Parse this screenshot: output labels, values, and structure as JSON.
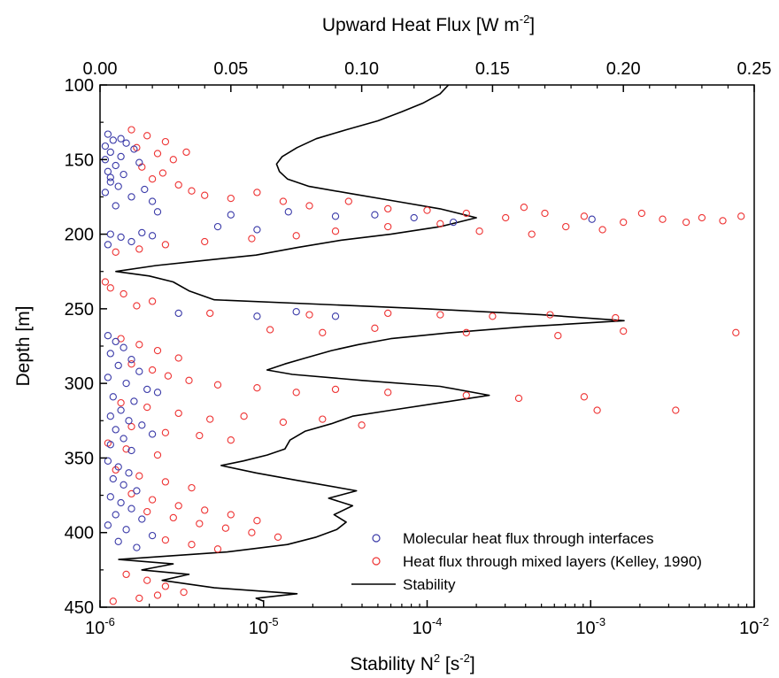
{
  "chart_data": {
    "type": "scatter",
    "top_axis": {
      "title_base": "Upward Heat Flux [W m",
      "title_sup": "-2",
      "title_end": "]",
      "range": [
        0.0,
        0.25
      ],
      "ticks": [
        0.0,
        0.05,
        0.1,
        0.15,
        0.2,
        0.25
      ],
      "tick_labels": [
        "0.00",
        "0.05",
        "0.10",
        "0.15",
        "0.20",
        "0.25"
      ]
    },
    "bottom_axis": {
      "title_base": "Stability N",
      "title_sup": "2",
      "title_end": " [s",
      "title_sup2": "-2",
      "title_end2": "]",
      "scale": "log",
      "range": [
        1e-06,
        0.01
      ],
      "ticks": [
        {
          "base": "10",
          "exp": "-6"
        },
        {
          "base": "10",
          "exp": "-5"
        },
        {
          "base": "10",
          "exp": "-4"
        },
        {
          "base": "10",
          "exp": "-3"
        },
        {
          "base": "10",
          "exp": "-2"
        }
      ]
    },
    "y_axis": {
      "title": "Depth [m]",
      "range": [
        100,
        450
      ],
      "inverted": true,
      "ticks": [
        100,
        150,
        200,
        250,
        300,
        350,
        400,
        450
      ],
      "tick_labels": [
        "100",
        "150",
        "200",
        "250",
        "300",
        "350",
        "400",
        "450"
      ]
    },
    "legend": {
      "position": "bottom-right",
      "items": [
        {
          "label": "Molecular heat flux through interfaces",
          "marker": "circle",
          "color": "#3a3aa8"
        },
        {
          "label": "Heat flux through mixed layers (Kelley, 1990)",
          "marker": "circle",
          "color": "#ee3333"
        },
        {
          "label": "Stability",
          "marker": "line",
          "color": "#000000"
        }
      ]
    },
    "colors": {
      "molecular": "#3a3aa8",
      "mixed": "#ee3333",
      "stability": "#000000"
    },
    "series": [
      {
        "name": "Stability",
        "kind": "line",
        "axis": "bottom",
        "points": [
          [
            0.000135,
            100
          ],
          [
            0.00012,
            106
          ],
          [
            9.5e-05,
            112
          ],
          [
            7e-05,
            118
          ],
          [
            5e-05,
            124
          ],
          [
            3.2e-05,
            130
          ],
          [
            2.1e-05,
            136
          ],
          [
            1.6e-05,
            142
          ],
          [
            1.3e-05,
            148
          ],
          [
            1.2e-05,
            153
          ],
          [
            1.25e-05,
            158
          ],
          [
            1.4e-05,
            163
          ],
          [
            1.9e-05,
            168
          ],
          [
            3.5e-05,
            173
          ],
          [
            6.5e-05,
            178
          ],
          [
            0.00012,
            183
          ],
          [
            0.0002,
            189
          ],
          [
            0.00012,
            195
          ],
          [
            6e-05,
            200
          ],
          [
            3e-05,
            204
          ],
          [
            1.6e-05,
            209
          ],
          [
            9e-06,
            214
          ],
          [
            4e-06,
            218
          ],
          [
            2.2e-06,
            221
          ],
          [
            1.25e-06,
            225
          ],
          [
            2e-06,
            228
          ],
          [
            2.8e-06,
            232
          ],
          [
            3.5e-06,
            238
          ],
          [
            5e-06,
            244
          ],
          [
            0.0001,
            250
          ],
          [
            0.0005,
            254
          ],
          [
            0.0016,
            258
          ],
          [
            0.0004,
            262
          ],
          [
            0.00014,
            266
          ],
          [
            6e-05,
            270
          ],
          [
            3.8e-05,
            274
          ],
          [
            2.6e-05,
            278
          ],
          [
            1.8e-05,
            283
          ],
          [
            1.35e-05,
            287
          ],
          [
            1.05e-05,
            291
          ],
          [
            1.5e-05,
            294
          ],
          [
            4e-05,
            298
          ],
          [
            0.00012,
            302
          ],
          [
            0.00024,
            308
          ],
          [
            0.00012,
            313
          ],
          [
            6e-05,
            318
          ],
          [
            3.5e-05,
            322
          ],
          [
            2.6e-05,
            327
          ],
          [
            1.8e-05,
            332
          ],
          [
            1.45e-05,
            338
          ],
          [
            1.35e-05,
            344
          ],
          [
            1.05e-05,
            348
          ],
          [
            7.5e-06,
            352
          ],
          [
            5.5e-06,
            355
          ],
          [
            9e-06,
            360
          ],
          [
            1.6e-05,
            365
          ],
          [
            3.7e-05,
            372
          ],
          [
            2.5e-05,
            377
          ],
          [
            3.5e-05,
            382
          ],
          [
            2.7e-05,
            388
          ],
          [
            3.2e-05,
            393
          ],
          [
            2.8e-05,
            398
          ],
          [
            2.1e-05,
            403
          ],
          [
            1.4e-05,
            408
          ],
          [
            6e-06,
            413
          ],
          [
            1.3e-06,
            418
          ],
          [
            2.8e-06,
            421
          ],
          [
            1.8e-06,
            425
          ],
          [
            3.5e-06,
            428
          ],
          [
            2.4e-06,
            432
          ],
          [
            5e-06,
            437
          ],
          [
            1.6e-05,
            441
          ],
          [
            9e-06,
            444
          ],
          [
            1e-05,
            446
          ]
        ]
      },
      {
        "name": "Molecular heat flux through interfaces",
        "kind": "scatter",
        "axis": "top",
        "points": [
          [
            0.003,
            133
          ],
          [
            0.005,
            137
          ],
          [
            0.002,
            141
          ],
          [
            0.008,
            136
          ],
          [
            0.004,
            145
          ],
          [
            0.002,
            150
          ],
          [
            0.006,
            154
          ],
          [
            0.003,
            158
          ],
          [
            0.009,
            160
          ],
          [
            0.004,
            165
          ],
          [
            0.007,
            168
          ],
          [
            0.002,
            172
          ],
          [
            0.012,
            175
          ],
          [
            0.02,
            178
          ],
          [
            0.006,
            181
          ],
          [
            0.01,
            139
          ],
          [
            0.015,
            152
          ],
          [
            0.004,
            162
          ],
          [
            0.008,
            148
          ],
          [
            0.013,
            143
          ],
          [
            0.017,
            170
          ],
          [
            0.022,
            185
          ],
          [
            0.05,
            187
          ],
          [
            0.072,
            185
          ],
          [
            0.09,
            188
          ],
          [
            0.105,
            187
          ],
          [
            0.12,
            189
          ],
          [
            0.135,
            192
          ],
          [
            0.188,
            190
          ],
          [
            0.004,
            200
          ],
          [
            0.008,
            202
          ],
          [
            0.012,
            205
          ],
          [
            0.016,
            199
          ],
          [
            0.003,
            207
          ],
          [
            0.02,
            201
          ],
          [
            0.045,
            195
          ],
          [
            0.06,
            197
          ],
          [
            0.03,
            253
          ],
          [
            0.06,
            255
          ],
          [
            0.075,
            252
          ],
          [
            0.09,
            255
          ],
          [
            0.003,
            268
          ],
          [
            0.006,
            272
          ],
          [
            0.009,
            276
          ],
          [
            0.004,
            280
          ],
          [
            0.012,
            284
          ],
          [
            0.007,
            288
          ],
          [
            0.015,
            292
          ],
          [
            0.003,
            296
          ],
          [
            0.01,
            300
          ],
          [
            0.018,
            304
          ],
          [
            0.022,
            306
          ],
          [
            0.005,
            309
          ],
          [
            0.013,
            312
          ],
          [
            0.008,
            318
          ],
          [
            0.004,
            322
          ],
          [
            0.011,
            325
          ],
          [
            0.016,
            328
          ],
          [
            0.006,
            331
          ],
          [
            0.02,
            334
          ],
          [
            0.009,
            337
          ],
          [
            0.004,
            341
          ],
          [
            0.012,
            345
          ],
          [
            0.003,
            352
          ],
          [
            0.007,
            356
          ],
          [
            0.011,
            360
          ],
          [
            0.005,
            364
          ],
          [
            0.009,
            368
          ],
          [
            0.014,
            372
          ],
          [
            0.004,
            376
          ],
          [
            0.008,
            380
          ],
          [
            0.012,
            384
          ],
          [
            0.006,
            388
          ],
          [
            0.016,
            391
          ],
          [
            0.003,
            395
          ],
          [
            0.01,
            398
          ],
          [
            0.02,
            402
          ],
          [
            0.007,
            406
          ],
          [
            0.014,
            410
          ]
        ]
      },
      {
        "name": "Heat flux through mixed layers (Kelley, 1990)",
        "kind": "scatter",
        "axis": "top",
        "points": [
          [
            0.012,
            130
          ],
          [
            0.018,
            134
          ],
          [
            0.025,
            138
          ],
          [
            0.014,
            142
          ],
          [
            0.022,
            146
          ],
          [
            0.028,
            150
          ],
          [
            0.016,
            155
          ],
          [
            0.024,
            159
          ],
          [
            0.02,
            163
          ],
          [
            0.03,
            167
          ],
          [
            0.033,
            145
          ],
          [
            0.035,
            171
          ],
          [
            0.04,
            174
          ],
          [
            0.05,
            176
          ],
          [
            0.06,
            172
          ],
          [
            0.07,
            178
          ],
          [
            0.08,
            181
          ],
          [
            0.095,
            178
          ],
          [
            0.11,
            183
          ],
          [
            0.125,
            184
          ],
          [
            0.14,
            186
          ],
          [
            0.155,
            189
          ],
          [
            0.17,
            186
          ],
          [
            0.185,
            188
          ],
          [
            0.2,
            192
          ],
          [
            0.215,
            190
          ],
          [
            0.23,
            189
          ],
          [
            0.245,
            188
          ],
          [
            0.162,
            182
          ],
          [
            0.178,
            195
          ],
          [
            0.192,
            197
          ],
          [
            0.207,
            186
          ],
          [
            0.224,
            192
          ],
          [
            0.238,
            191
          ],
          [
            0.13,
            193
          ],
          [
            0.145,
            198
          ],
          [
            0.165,
            200
          ],
          [
            0.11,
            195
          ],
          [
            0.09,
            198
          ],
          [
            0.075,
            201
          ],
          [
            0.058,
            203
          ],
          [
            0.04,
            205
          ],
          [
            0.025,
            207
          ],
          [
            0.015,
            210
          ],
          [
            0.006,
            212
          ],
          [
            0.002,
            232
          ],
          [
            0.004,
            236
          ],
          [
            0.009,
            240
          ],
          [
            0.014,
            248
          ],
          [
            0.02,
            245
          ],
          [
            0.042,
            253
          ],
          [
            0.08,
            254
          ],
          [
            0.11,
            253
          ],
          [
            0.13,
            254
          ],
          [
            0.15,
            255
          ],
          [
            0.172,
            254
          ],
          [
            0.197,
            256
          ],
          [
            0.065,
            264
          ],
          [
            0.085,
            266
          ],
          [
            0.105,
            263
          ],
          [
            0.14,
            266
          ],
          [
            0.175,
            268
          ],
          [
            0.2,
            265
          ],
          [
            0.243,
            266
          ],
          [
            0.008,
            270
          ],
          [
            0.015,
            274
          ],
          [
            0.022,
            278
          ],
          [
            0.03,
            283
          ],
          [
            0.012,
            287
          ],
          [
            0.02,
            291
          ],
          [
            0.026,
            295
          ],
          [
            0.034,
            298
          ],
          [
            0.045,
            301
          ],
          [
            0.06,
            303
          ],
          [
            0.075,
            306
          ],
          [
            0.09,
            304
          ],
          [
            0.11,
            306
          ],
          [
            0.14,
            308
          ],
          [
            0.16,
            310
          ],
          [
            0.185,
            309
          ],
          [
            0.19,
            318
          ],
          [
            0.22,
            318
          ],
          [
            0.008,
            313
          ],
          [
            0.018,
            316
          ],
          [
            0.03,
            320
          ],
          [
            0.042,
            324
          ],
          [
            0.055,
            322
          ],
          [
            0.07,
            326
          ],
          [
            0.085,
            324
          ],
          [
            0.1,
            328
          ],
          [
            0.012,
            329
          ],
          [
            0.025,
            333
          ],
          [
            0.038,
            335
          ],
          [
            0.05,
            338
          ],
          [
            0.003,
            340
          ],
          [
            0.01,
            344
          ],
          [
            0.022,
            348
          ],
          [
            0.006,
            358
          ],
          [
            0.015,
            362
          ],
          [
            0.025,
            366
          ],
          [
            0.035,
            370
          ],
          [
            0.012,
            374
          ],
          [
            0.02,
            378
          ],
          [
            0.03,
            382
          ],
          [
            0.04,
            385
          ],
          [
            0.05,
            388
          ],
          [
            0.06,
            392
          ],
          [
            0.018,
            386
          ],
          [
            0.028,
            390
          ],
          [
            0.038,
            394
          ],
          [
            0.048,
            397
          ],
          [
            0.058,
            400
          ],
          [
            0.068,
            403
          ],
          [
            0.025,
            405
          ],
          [
            0.035,
            408
          ],
          [
            0.045,
            411
          ],
          [
            0.01,
            428
          ],
          [
            0.018,
            432
          ],
          [
            0.025,
            436
          ],
          [
            0.032,
            440
          ],
          [
            0.015,
            444
          ],
          [
            0.022,
            442
          ],
          [
            0.005,
            446
          ]
        ]
      }
    ]
  }
}
